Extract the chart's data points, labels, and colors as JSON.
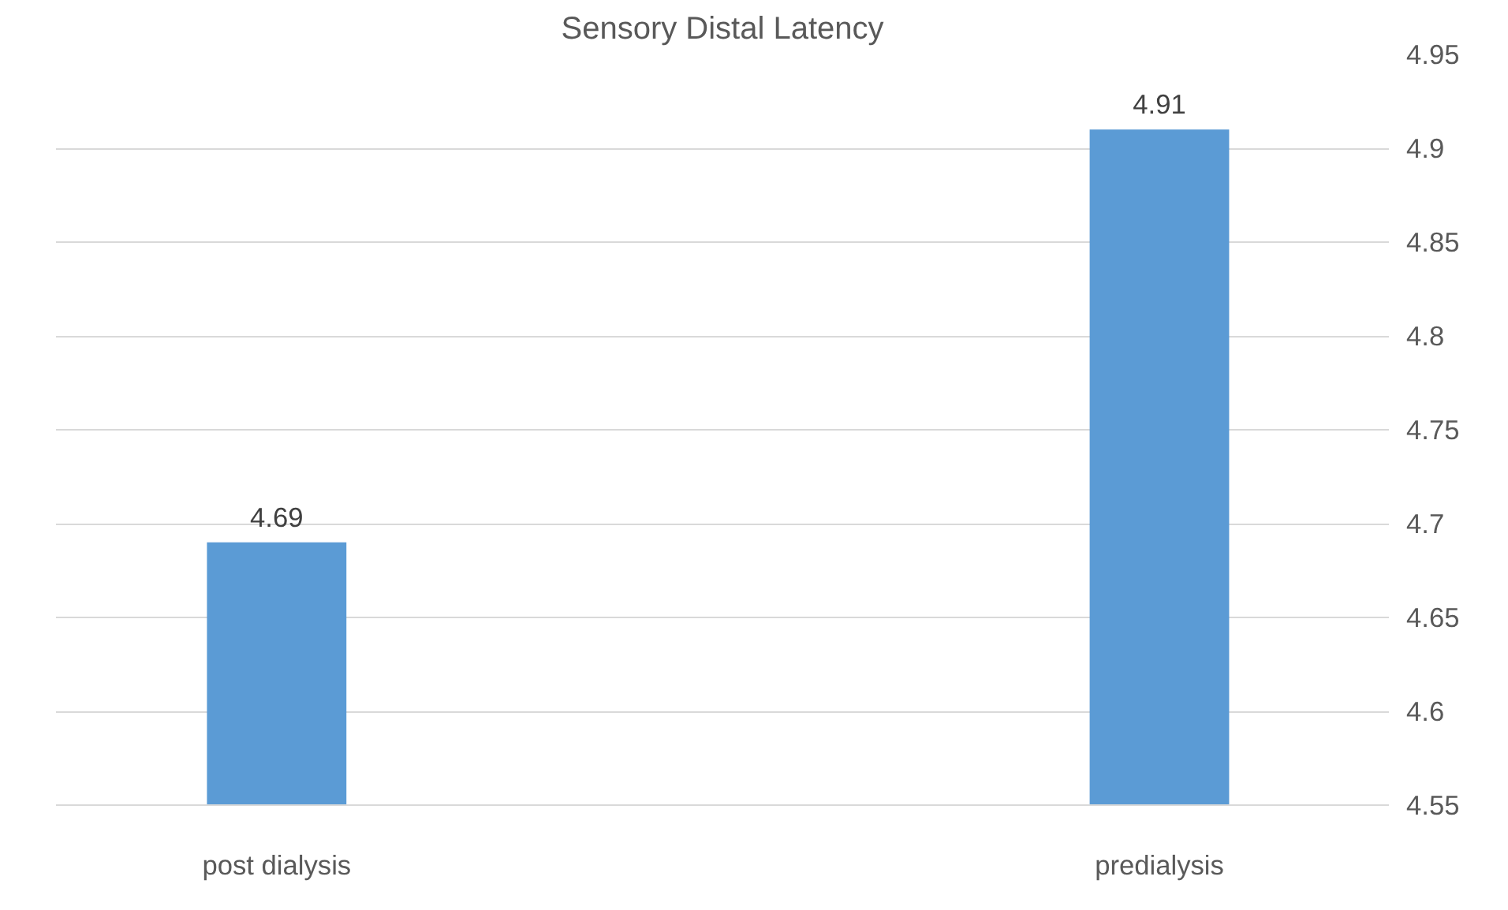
{
  "chart_data": {
    "type": "bar",
    "title": "Sensory Distal Latency",
    "categories": [
      "post dialysis",
      "predialysis"
    ],
    "values": [
      4.69,
      4.91
    ],
    "color": "#5b9bd5",
    "ylim": [
      4.55,
      4.95
    ],
    "yticks": [
      4.55,
      4.6,
      4.65,
      4.7,
      4.75,
      4.8,
      4.85,
      4.9,
      4.95
    ],
    "grid": "y",
    "data_labels": true
  }
}
